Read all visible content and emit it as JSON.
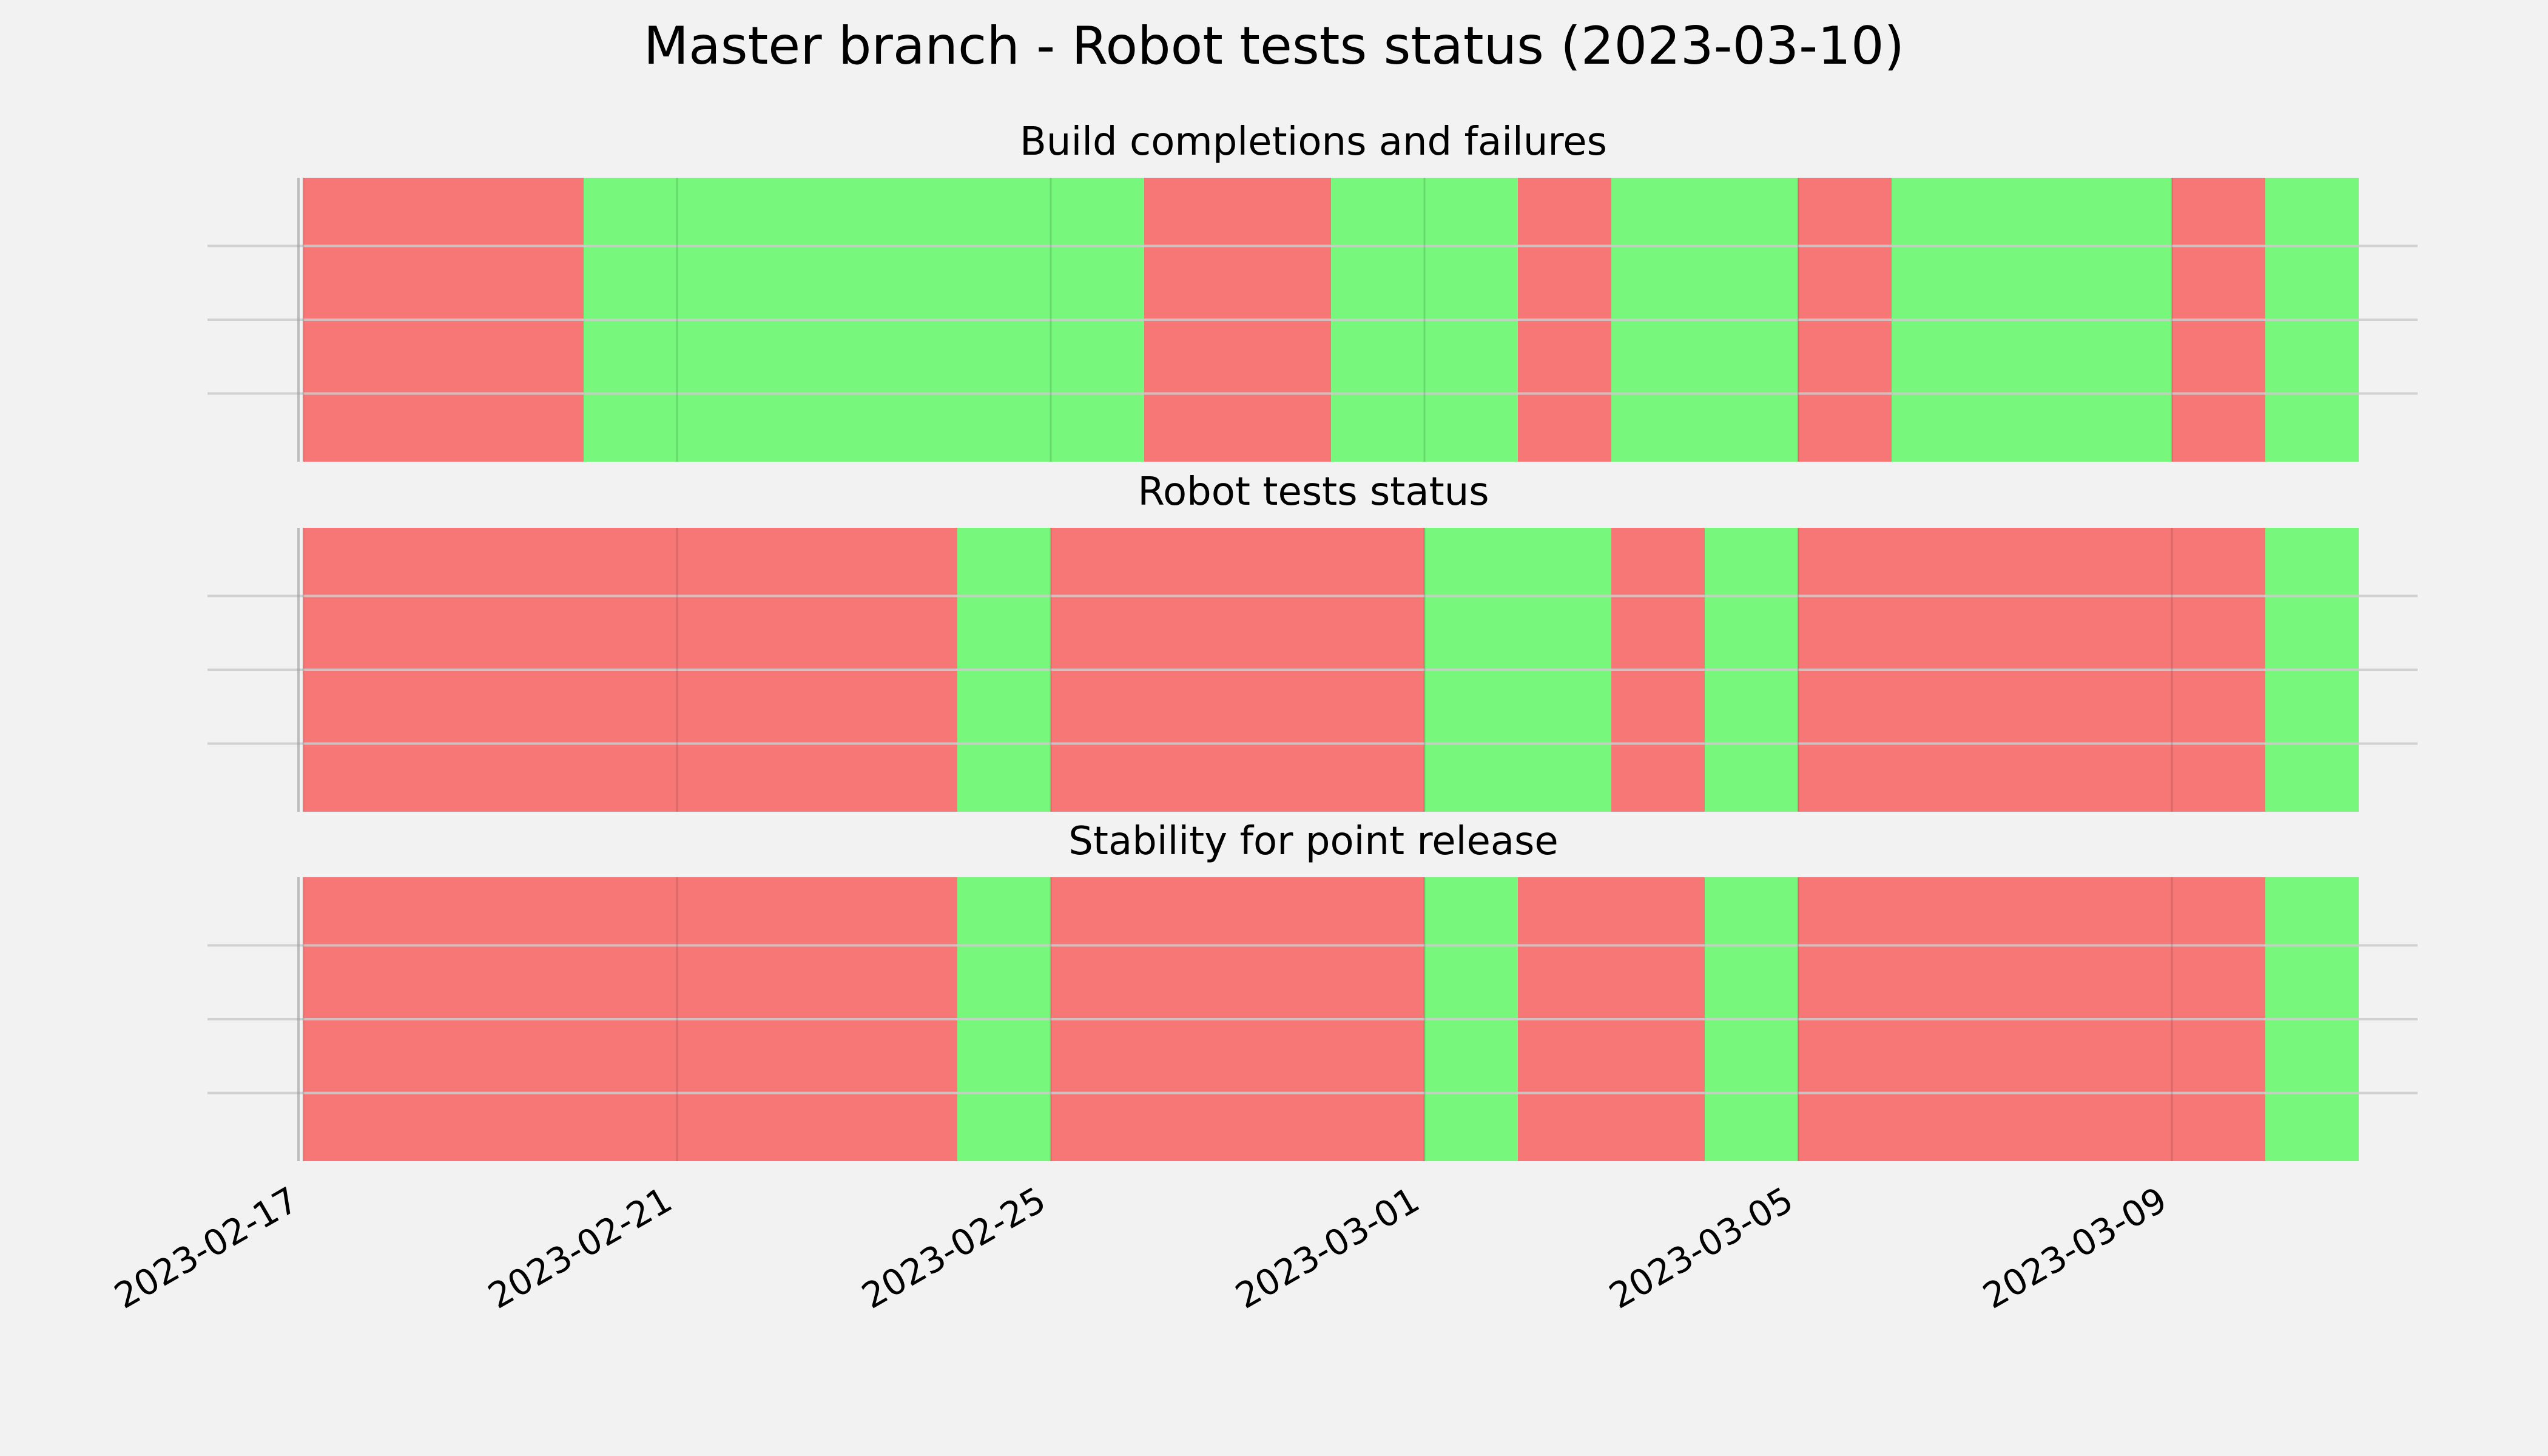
{
  "figure": {
    "title": "Master branch - Robot tests status (2023-03-10)"
  },
  "colors": {
    "pass": "#77f77b",
    "fail": "#f77777",
    "background": "#f2f2f2",
    "grid": "#cbcbcb"
  },
  "chart_data": [
    {
      "type": "timeline",
      "title": "Build completions and failures",
      "grid": true,
      "xlim": [
        "2023-02-17",
        "2023-03-11"
      ],
      "segments": [
        {
          "start": "2023-02-17",
          "end": "2023-02-20",
          "status": "fail"
        },
        {
          "start": "2023-02-20",
          "end": "2023-02-26",
          "status": "pass"
        },
        {
          "start": "2023-02-26",
          "end": "2023-02-28",
          "status": "fail"
        },
        {
          "start": "2023-02-28",
          "end": "2023-03-02",
          "status": "pass"
        },
        {
          "start": "2023-03-02",
          "end": "2023-03-03",
          "status": "fail"
        },
        {
          "start": "2023-03-03",
          "end": "2023-03-05",
          "status": "pass"
        },
        {
          "start": "2023-03-05",
          "end": "2023-03-06",
          "status": "fail"
        },
        {
          "start": "2023-03-06",
          "end": "2023-03-09",
          "status": "pass"
        },
        {
          "start": "2023-03-09",
          "end": "2023-03-10",
          "status": "fail"
        },
        {
          "start": "2023-03-10",
          "end": "2023-03-11",
          "status": "pass"
        }
      ]
    },
    {
      "type": "timeline",
      "title": "Robot tests status",
      "grid": true,
      "xlim": [
        "2023-02-17",
        "2023-03-11"
      ],
      "segments": [
        {
          "start": "2023-02-17",
          "end": "2023-02-24",
          "status": "fail"
        },
        {
          "start": "2023-02-24",
          "end": "2023-02-25",
          "status": "pass"
        },
        {
          "start": "2023-02-25",
          "end": "2023-03-01",
          "status": "fail"
        },
        {
          "start": "2023-03-01",
          "end": "2023-03-03",
          "status": "pass"
        },
        {
          "start": "2023-03-03",
          "end": "2023-03-04",
          "status": "fail"
        },
        {
          "start": "2023-03-04",
          "end": "2023-03-05",
          "status": "pass"
        },
        {
          "start": "2023-03-05",
          "end": "2023-03-10",
          "status": "fail"
        },
        {
          "start": "2023-03-10",
          "end": "2023-03-11",
          "status": "pass"
        }
      ]
    },
    {
      "type": "timeline",
      "title": "Stability for point release",
      "grid": true,
      "xlim": [
        "2023-02-17",
        "2023-03-11"
      ],
      "segments": [
        {
          "start": "2023-02-17",
          "end": "2023-02-24",
          "status": "fail"
        },
        {
          "start": "2023-02-24",
          "end": "2023-02-25",
          "status": "pass"
        },
        {
          "start": "2023-02-25",
          "end": "2023-03-01",
          "status": "fail"
        },
        {
          "start": "2023-03-01",
          "end": "2023-03-02",
          "status": "pass"
        },
        {
          "start": "2023-03-02",
          "end": "2023-03-04",
          "status": "fail"
        },
        {
          "start": "2023-03-04",
          "end": "2023-03-05",
          "status": "pass"
        },
        {
          "start": "2023-03-05",
          "end": "2023-03-10",
          "status": "fail"
        },
        {
          "start": "2023-03-10",
          "end": "2023-03-11",
          "status": "pass"
        }
      ]
    }
  ],
  "x_axis": {
    "tick_labels": [
      "2023-02-17",
      "2023-02-21",
      "2023-02-25",
      "2023-03-01",
      "2023-03-05",
      "2023-03-09"
    ]
  }
}
